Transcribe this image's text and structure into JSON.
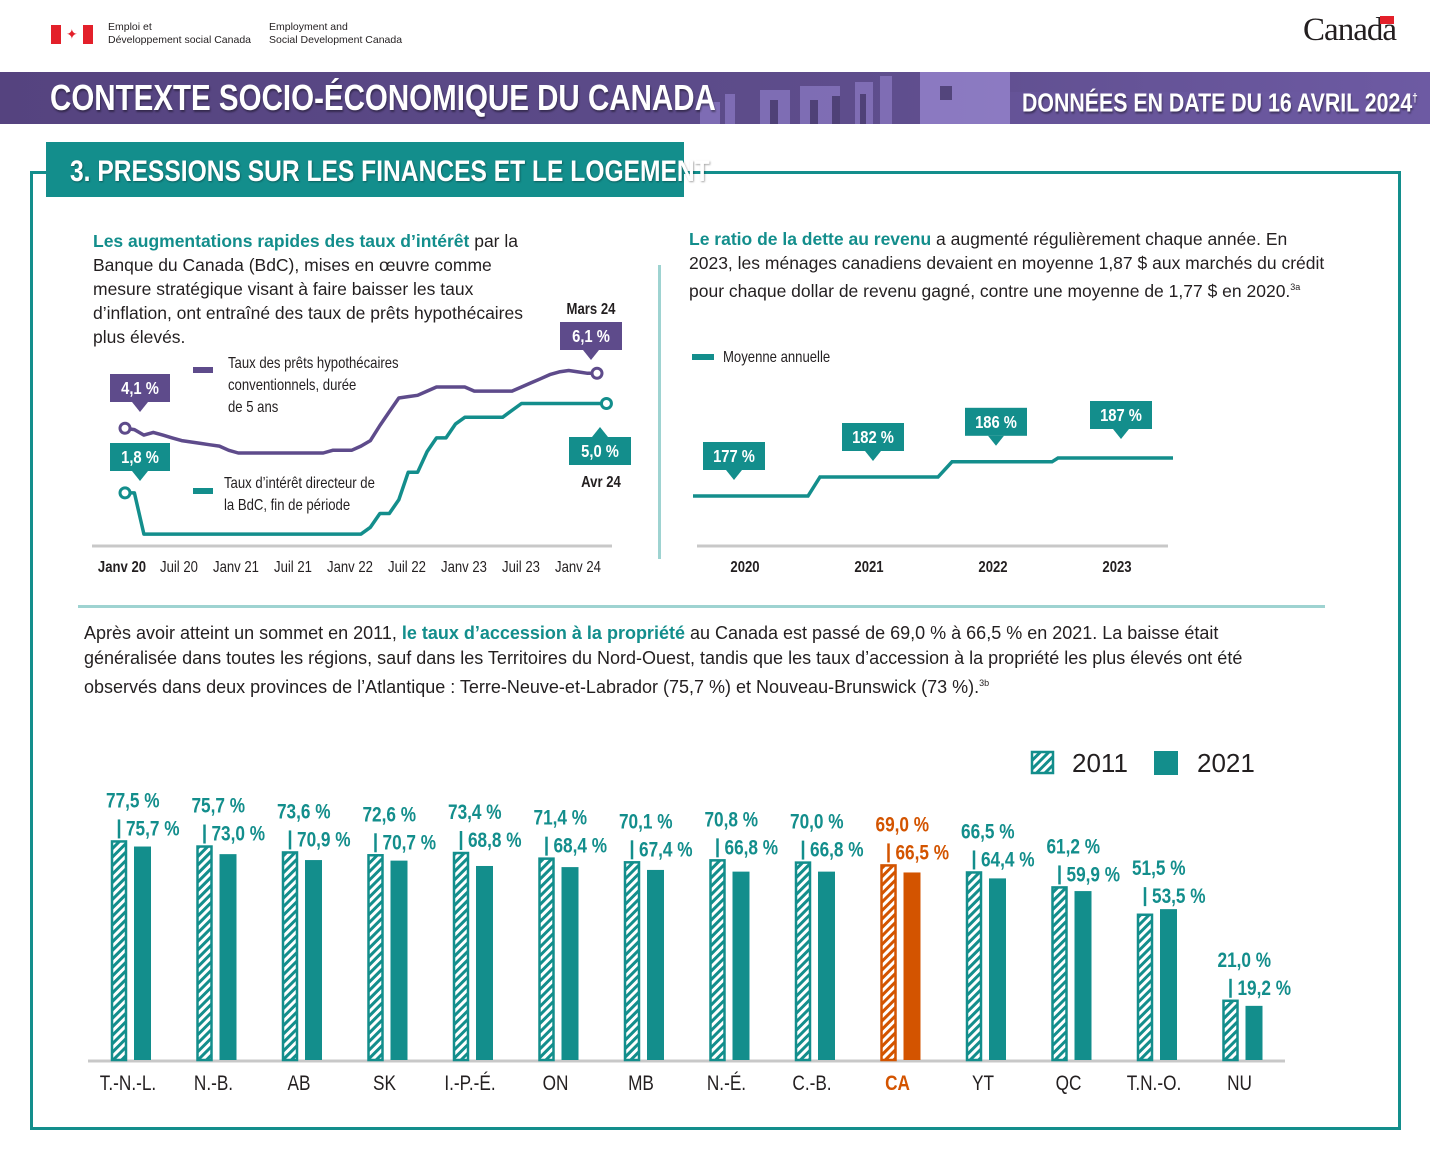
{
  "header": {
    "dept_fr": [
      "Emploi et",
      "Développement social Canada"
    ],
    "dept_en": [
      "Employment and",
      "Social Development Canada"
    ],
    "wordmark": "Canada",
    "band_title": "CONTEXTE SOCIO-ÉCONOMIQUE DU CANADA",
    "band_date": "DONNÉES EN DATE DU 16 AVRIL 2024",
    "band_date_mark": "†"
  },
  "section": {
    "title": "3. PRESSIONS SUR LES FINANCES ET LE LOGEMENT"
  },
  "interest": {
    "highlight": "Les augmentations rapides des taux d’intérêt",
    "text": " par la Banque du Canada (BdC), mises en œuvre comme mesure stratégique visant à faire baisser les taux d’inflation, ont entraîné des taux de prêts hypothécaires plus élevés."
  },
  "debt": {
    "highlight": "Le ratio de la dette au revenu",
    "text": " a augmenté régulièrement chaque année. En 2023, les ménages canadiens devaient en moyenne 1,87 $ aux marchés du crédit pour chaque dollar de revenu gagné, contre une moyenne de 1,77 $ en 2020.",
    "sup": "3a"
  },
  "ownership": {
    "before": "Après avoir atteint un sommet en 2011, ",
    "highlight": "le taux d’accession à la propriété",
    "after": " au Canada est passé de 69,0 % à 66,5 % en 2021. La baisse était généralisée dans toutes les régions, sauf dans les Territoires du Nord-Ouest, tandis que les taux d’accession à la propriété les plus élevés ont été observés dans deux provinces de l’Atlantique : Terre-Neuve-et-Labrador (75,7 %) et Nouveau-Brunswick (73 %).",
    "sup": "3b"
  },
  "colors": {
    "teal": "#138e8c",
    "purple": "#5e4b8b",
    "orange": "#d35400",
    "axis": "#c8c8c8"
  },
  "chart_data": [
    {
      "type": "line",
      "x_ticks": [
        "Janv 20",
        "Juil 20",
        "Janv 21",
        "Juil 21",
        "Janv 22",
        "Juil 22",
        "Janv 23",
        "Juil 23",
        "Janv 24"
      ],
      "series": [
        {
          "name": "Taux des prêts hypothécaires conventionnels, durée de 5 ans",
          "legend_lines": [
            "Taux des prêts hypothécaires",
            "conventionnels, durée",
            "de 5 ans"
          ],
          "color": "#5e4b8b",
          "start": "Janv 20",
          "end": "Mars 24",
          "values": [
            4.1,
            4.05,
            3.85,
            3.95,
            3.85,
            3.75,
            3.65,
            3.6,
            3.55,
            3.5,
            3.45,
            3.3,
            3.2,
            3.2,
            3.2,
            3.2,
            3.2,
            3.2,
            3.2,
            3.2,
            3.2,
            3.2,
            3.3,
            3.3,
            3.3,
            3.45,
            3.65,
            4.2,
            4.7,
            5.2,
            5.25,
            5.3,
            5.45,
            5.6,
            5.6,
            5.6,
            5.6,
            5.45,
            5.45,
            5.45,
            5.45,
            5.45,
            5.6,
            5.75,
            5.9,
            6.05,
            6.15,
            6.2,
            6.15,
            6.1,
            6.1
          ],
          "start_label": "4,1 %",
          "end_label": "6,1 %",
          "end_date_label": "Mars 24"
        },
        {
          "name": "Taux d’intérêt directeur de la BdC, fin de période",
          "legend_lines": [
            "Taux d’intérêt directeur de",
            "la BdC, fin de période"
          ],
          "color": "#138e8c",
          "start": "Janv 20",
          "end": "Avr 24",
          "values": [
            1.75,
            1.75,
            0.25,
            0.25,
            0.25,
            0.25,
            0.25,
            0.25,
            0.25,
            0.25,
            0.25,
            0.25,
            0.25,
            0.25,
            0.25,
            0.25,
            0.25,
            0.25,
            0.25,
            0.25,
            0.25,
            0.25,
            0.25,
            0.25,
            0.25,
            0.25,
            0.5,
            1.0,
            1.0,
            1.5,
            2.5,
            2.5,
            3.25,
            3.75,
            3.75,
            4.25,
            4.5,
            4.5,
            4.5,
            4.5,
            4.5,
            4.75,
            5.0,
            5.0,
            5.0,
            5.0,
            5.0,
            5.0,
            5.0,
            5.0,
            5.0,
            5.0
          ],
          "start_label": "1,8 %",
          "end_label": "5,0 %",
          "end_date_label": "Avr 24"
        }
      ],
      "grid": false
    },
    {
      "type": "line",
      "legend": "Moyenne annuelle",
      "categories": [
        "2020",
        "2021",
        "2022",
        "2023"
      ],
      "values": [
        177,
        182,
        186,
        187
      ],
      "labels": [
        "177 %",
        "182 %",
        "186 %",
        "187 %"
      ],
      "unit": "%",
      "grid": false
    },
    {
      "type": "bar",
      "legend": [
        "2011",
        "2021"
      ],
      "legend_placement": "top-right",
      "categories": [
        "T.-N.-L.",
        "N.-B.",
        "AB",
        "SK",
        "I.-P.-É.",
        "ON",
        "MB",
        "N.-É.",
        "C.-B.",
        "CA",
        "YT",
        "QC",
        "T.N.-O.",
        "NU"
      ],
      "highlight_category": "CA",
      "series": [
        {
          "name": "2011",
          "pattern": "hatched",
          "values": [
            77.5,
            75.7,
            73.6,
            72.6,
            73.4,
            71.4,
            70.1,
            70.8,
            70.0,
            69.0,
            66.5,
            61.2,
            51.5,
            21.0
          ]
        },
        {
          "name": "2021",
          "pattern": "solid",
          "values": [
            75.7,
            73.0,
            70.9,
            70.7,
            68.8,
            68.4,
            67.4,
            66.8,
            66.8,
            66.5,
            64.4,
            59.9,
            53.5,
            19.2
          ]
        }
      ],
      "unit": "%",
      "grid": false
    }
  ]
}
